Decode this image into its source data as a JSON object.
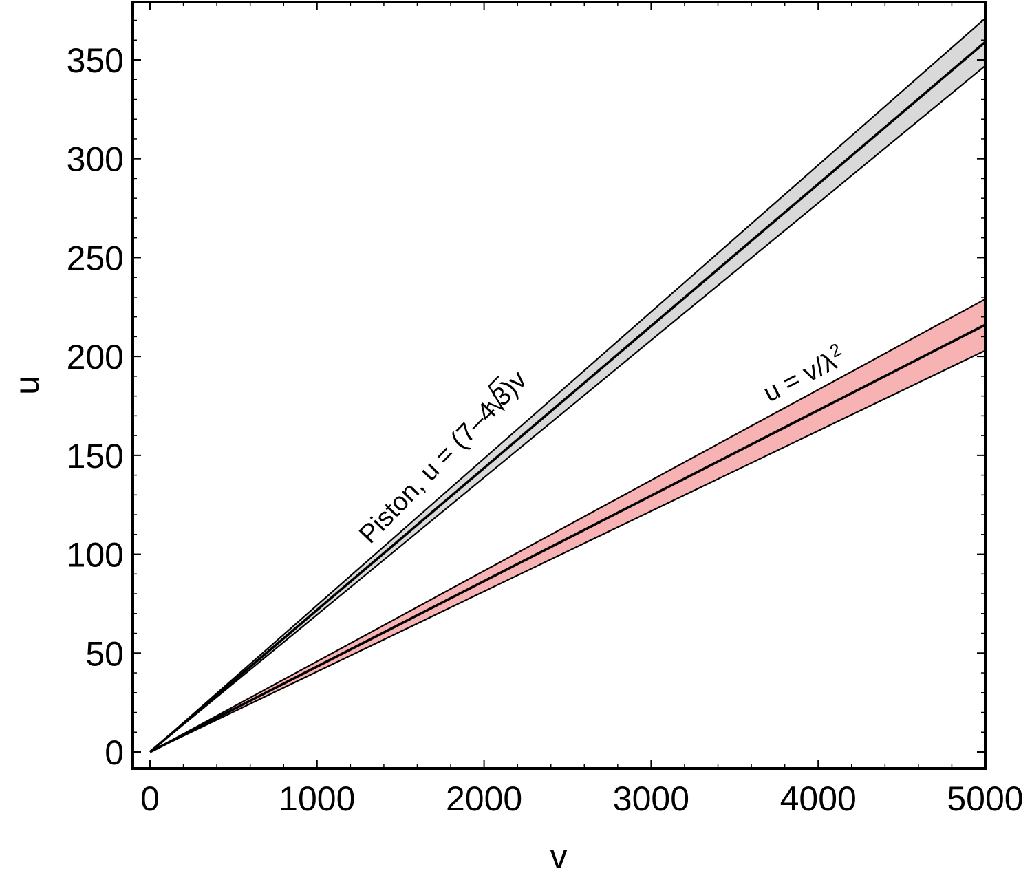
{
  "chart_data": {
    "type": "line",
    "xlabel": "v",
    "ylabel": "u",
    "xlim": [
      -100,
      5000
    ],
    "ylim": [
      -8,
      378
    ],
    "xticks": [
      0,
      1000,
      2000,
      3000,
      4000,
      5000
    ],
    "xtick_labels": [
      "0",
      "1000",
      "2000",
      "3000",
      "4000",
      "5000"
    ],
    "yticks": [
      0,
      50,
      100,
      150,
      200,
      250,
      300,
      350
    ],
    "ytick_labels": [
      "0",
      "50",
      "100",
      "150",
      "200",
      "250",
      "300",
      "350"
    ],
    "grid": false,
    "legend": "none",
    "series": [
      {
        "label_parts": [
          "Piston, u = (7–4 ",
          "3",
          ")v"
        ],
        "color": "#d9d9d9",
        "x": [
          0,
          5000
        ],
        "center": [
          0,
          359
        ],
        "upper": [
          0,
          371
        ],
        "lower": [
          0,
          347
        ]
      },
      {
        "label_parts": [
          "u = v/λ",
          "2"
        ],
        "color": "#f7b3b3",
        "x": [
          0,
          5000
        ],
        "center": [
          0,
          216
        ],
        "upper": [
          0,
          229
        ],
        "lower": [
          0,
          203
        ]
      }
    ]
  }
}
